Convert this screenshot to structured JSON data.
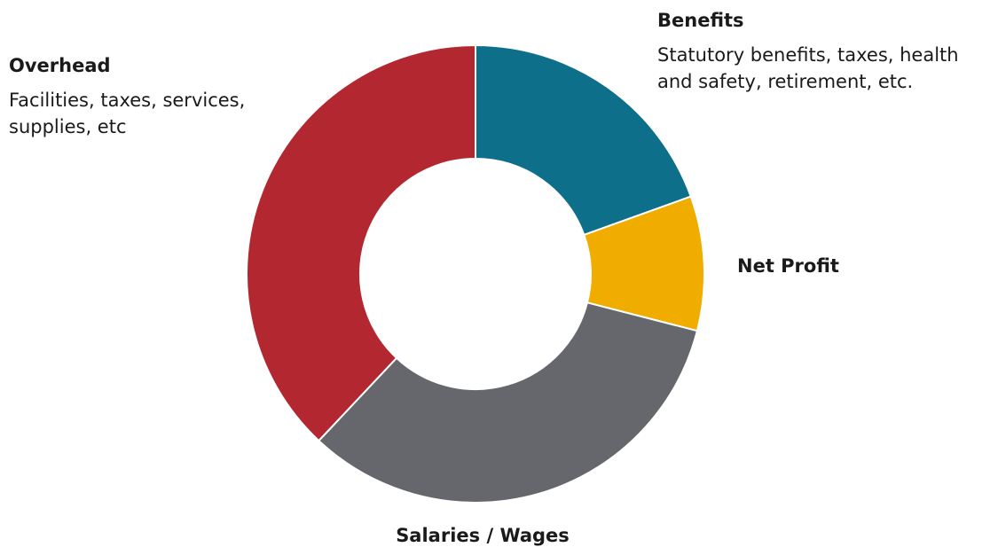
{
  "chart_data": {
    "type": "pie",
    "donut": true,
    "slices": [
      {
        "name": "Benefits",
        "value": 19.5,
        "color": "#0e6f8a"
      },
      {
        "name": "Net Profit",
        "value": 9.5,
        "color": "#f0ad00"
      },
      {
        "name": "Salaries / Wages",
        "value": 33,
        "color": "#65676c"
      },
      {
        "name": "Overhead",
        "value": 38,
        "color": "#b32730"
      }
    ],
    "annotations": {
      "benefits": {
        "title": "Benefits",
        "description": "Statutory benefits, taxes, health and safety, retirement, etc."
      },
      "overhead": {
        "title": "Overhead",
        "description": "Facilities, taxes, services, supplies, etc"
      },
      "net_profit": {
        "title": "Net Profit"
      },
      "salaries": {
        "title": "Salaries / Wages"
      }
    }
  }
}
